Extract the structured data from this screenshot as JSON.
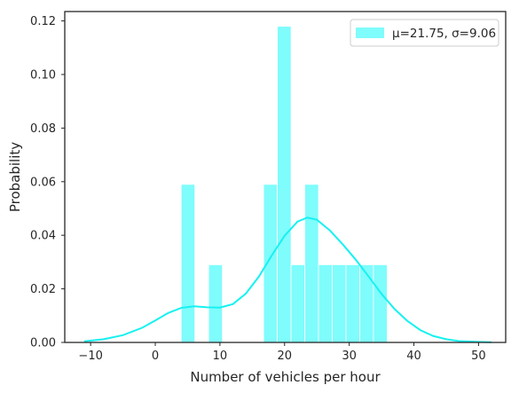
{
  "chart_data": {
    "type": "bar",
    "xlabel": "Number of vehicles per hour",
    "ylabel": "Probability",
    "xlim": [
      -14,
      54.2
    ],
    "ylim": [
      0,
      0.1235
    ],
    "x_ticks": [
      -10,
      0,
      10,
      20,
      30,
      40,
      50
    ],
    "y_ticks": [
      0.0,
      0.02,
      0.04,
      0.06,
      0.08,
      0.1,
      0.12
    ],
    "x_tick_labels": [
      "−10",
      "0",
      "10",
      "20",
      "30",
      "40",
      "50"
    ],
    "y_tick_labels": [
      "0.00",
      "0.02",
      "0.04",
      "0.06",
      "0.08",
      "0.10",
      "0.12"
    ],
    "bar_color": "#7ffcfc",
    "kde_color": "#17f1f1",
    "histogram": {
      "bin_edges": [
        4.0,
        6.125,
        8.25,
        10.375,
        12.5,
        14.625,
        16.75,
        18.875,
        21.0,
        23.125,
        25.25,
        27.375,
        29.5,
        31.625,
        33.75,
        35.875
      ],
      "values": [
        0.059,
        0.0,
        0.029,
        0.0,
        0.0,
        0.0,
        0.059,
        0.118,
        0.029,
        0.059,
        0.029,
        0.029,
        0.029,
        0.029,
        0.029
      ]
    },
    "kde": {
      "x": [
        -11,
        -8,
        -5,
        -2,
        0,
        2,
        4,
        6,
        8,
        10,
        12,
        14,
        16,
        18,
        20,
        22,
        23.5,
        25,
        27,
        29,
        31,
        33,
        35,
        37,
        39,
        41,
        43,
        45,
        47,
        50,
        52
      ],
      "y": [
        0.0004,
        0.0012,
        0.0027,
        0.0055,
        0.0082,
        0.011,
        0.0129,
        0.0135,
        0.0131,
        0.013,
        0.0143,
        0.0182,
        0.0245,
        0.0324,
        0.0398,
        0.0451,
        0.0466,
        0.0458,
        0.0418,
        0.0366,
        0.0309,
        0.0246,
        0.0181,
        0.0125,
        0.008,
        0.0046,
        0.0024,
        0.0012,
        0.0005,
        0.0002,
        0.0001
      ]
    },
    "legend": {
      "label": "μ=21.75, σ=9.06",
      "placement": "top-right"
    },
    "grid": false
  }
}
